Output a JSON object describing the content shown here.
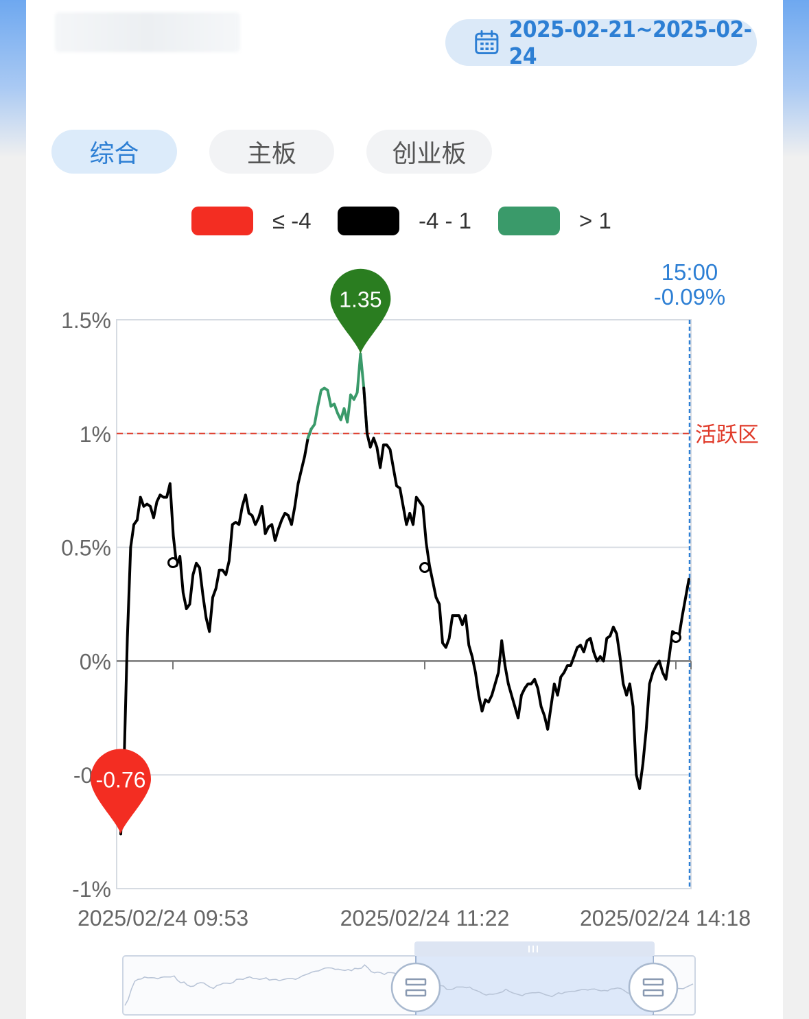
{
  "date_range": "2025-02-21~2025-02-24",
  "tabs": [
    {
      "label": "综合",
      "active": true
    },
    {
      "label": "主板",
      "active": false
    },
    {
      "label": "创业板",
      "active": false
    }
  ],
  "legend": [
    {
      "label": "≤ -4",
      "color": "#f32d22"
    },
    {
      "label": "-4 - 1",
      "color": "#000000"
    },
    {
      "label": "> 1",
      "color": "#3a9a6a"
    }
  ],
  "colors": {
    "accent": "#2d7fd4",
    "active_line": "#e03b2a",
    "up_marker": "#2a7d20",
    "down_marker": "#f32d22"
  },
  "icons": {
    "date": "calendar-icon",
    "slider_handle": "drag-handle-icon"
  },
  "chart_data": {
    "type": "line",
    "title": "",
    "xlabel": "",
    "ylabel": "",
    "ylim": [
      -1,
      1.5
    ],
    "yticks": [
      1.5,
      1,
      0.5,
      0,
      -0.5,
      -1
    ],
    "ytick_labels": [
      "1.5%",
      "1%",
      "0.5%",
      "0%",
      "-0.5",
      "-1%"
    ],
    "xtick_labels": [
      "2025/02/24 09:53",
      "2025/02/24 11:22",
      "2025/02/24 14:18"
    ],
    "reference_line": {
      "value": 1,
      "label": "活跃区"
    },
    "crosshair": {
      "time": "15:00",
      "value_label": "-0.09%"
    },
    "max_marker": {
      "value": 1.35,
      "label": "1.35"
    },
    "min_marker": {
      "value": -0.76,
      "label": "-0.76"
    },
    "grid": true,
    "legend_position": "top-center",
    "series": [
      {
        "values": [
          -0.76,
          -0.45,
          0.1,
          0.5,
          0.6,
          0.62,
          0.72,
          0.68,
          0.69,
          0.68,
          0.63,
          0.7,
          0.73,
          0.72,
          0.72,
          0.78,
          0.55,
          0.42,
          0.46,
          0.3,
          0.23,
          0.25,
          0.38,
          0.43,
          0.41,
          0.29,
          0.19,
          0.13,
          0.28,
          0.32,
          0.4,
          0.4,
          0.38,
          0.44,
          0.6,
          0.61,
          0.6,
          0.68,
          0.73,
          0.65,
          0.64,
          0.6,
          0.63,
          0.68,
          0.56,
          0.59,
          0.6,
          0.53,
          0.58,
          0.62,
          0.65,
          0.64,
          0.6,
          0.68,
          0.78,
          0.84,
          0.9,
          0.98,
          1.02,
          1.04,
          1.12,
          1.19,
          1.2,
          1.19,
          1.12,
          1.13,
          1.09,
          1.06,
          1.11,
          1.05,
          1.17,
          1.15,
          1.18,
          1.35,
          1.2,
          1.0,
          0.94,
          0.98,
          0.94,
          0.85,
          0.95,
          0.95,
          0.93,
          0.85,
          0.77,
          0.76,
          0.68,
          0.6,
          0.65,
          0.6,
          0.72,
          0.7,
          0.68,
          0.52,
          0.42,
          0.35,
          0.28,
          0.25,
          0.08,
          0.06,
          0.1,
          0.2,
          0.2,
          0.2,
          0.16,
          0.2,
          0.07,
          0.02,
          -0.05,
          -0.15,
          -0.22,
          -0.17,
          -0.18,
          -0.15,
          -0.1,
          -0.05,
          0.09,
          -0.02,
          -0.1,
          -0.15,
          -0.2,
          -0.25,
          -0.15,
          -0.12,
          -0.1,
          -0.1,
          -0.08,
          -0.12,
          -0.2,
          -0.24,
          -0.3,
          -0.2,
          -0.1,
          -0.15,
          -0.07,
          -0.05,
          -0.02,
          -0.02,
          0.02,
          0.06,
          0.07,
          0.04,
          0.09,
          0.1,
          0.04,
          0.0,
          0.02,
          0.0,
          0.1,
          0.11,
          0.15,
          0.12,
          0.02,
          -0.1,
          -0.15,
          -0.1,
          -0.2,
          -0.5,
          -0.56,
          -0.45,
          -0.3,
          -0.1,
          -0.05,
          -0.02,
          0.0,
          -0.05,
          -0.08,
          0.02,
          0.13,
          0.12,
          0.11,
          0.2,
          0.28,
          0.36
        ]
      }
    ]
  }
}
